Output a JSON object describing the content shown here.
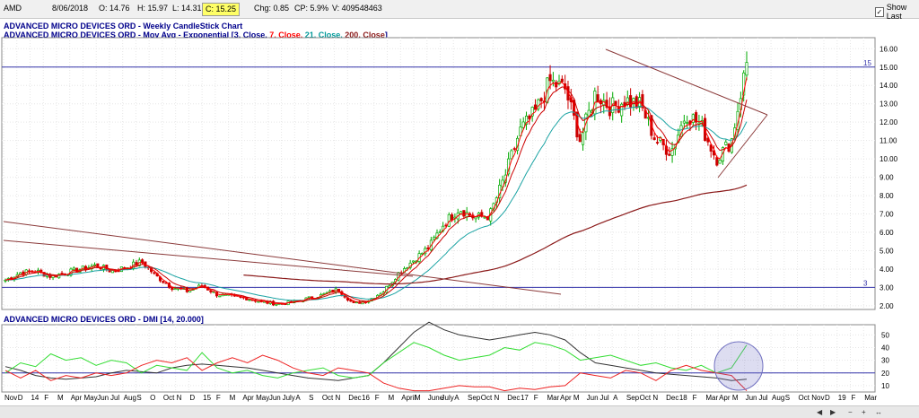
{
  "header": {
    "symbol": "AMD",
    "date": "8/06/2018",
    "open": "O: 14.76",
    "high": "H: 15.97",
    "low": "L: 14.31",
    "close": "C: 15.25",
    "change": "Chg: 0.85",
    "change_pct": "CP: 5.9%",
    "volume": "V: 409548463",
    "show_last_label": "Show Last"
  },
  "legend": {
    "title": "ADVANCED MICRO DEVICES ORD - Weekly CandleStick Chart",
    "ma_prefix": "ADVANCED MICRO DEVICES ORD - Mov Avg - Exponential [",
    "ma_p1": "3, Close,",
    "ma_p2": "7, Close,",
    "ma_p3": "21, Close,",
    "ma_p4": "200, Close",
    "ma_suffix": "]",
    "dmi": "ADVANCED MICRO DEVICES ORD - DMI [14, 20.000]"
  },
  "colors": {
    "up": "#00aa00",
    "down": "#cc0000",
    "ema3": "#ff0000",
    "ema7": "#cc0000",
    "ema21": "#1aa3a3",
    "ema200": "#8b1a1a",
    "trendline": "#8b3a3a",
    "hline": "#3333aa",
    "adx": "#333333",
    "plus_di": "#33dd33",
    "minus_di": "#ee2222"
  },
  "chart_data": [
    {
      "type": "candlestick",
      "title": "ADVANCED MICRO DEVICES ORD - Weekly CandleStick Chart",
      "ylim": [
        1.8,
        16.6
      ],
      "y_ticks": [
        "16.00",
        "15.00",
        "14.00",
        "13.00",
        "12.00",
        "11.00",
        "10.00",
        "9.00",
        "8.00",
        "7.00",
        "6.00",
        "5.00",
        "4.00",
        "3.00",
        "2.00"
      ],
      "horizontal_levels": [
        {
          "value": 15,
          "label": "15"
        },
        {
          "value": 3,
          "label": "3"
        }
      ],
      "close_path": [
        3.4,
        3.8,
        3.9,
        3.6,
        3.8,
        4.0,
        4.2,
        3.9,
        4.1,
        4.4,
        3.6,
        3.0,
        2.8,
        3.1,
        2.6,
        2.5,
        2.4,
        2.2,
        2.1,
        2.2,
        2.4,
        2.6,
        2.9,
        2.1,
        2.3,
        2.8,
        3.8,
        4.5,
        5.2,
        6.5,
        7.3,
        6.8,
        6.9,
        9.0,
        11.5,
        12.5,
        14.2,
        13.8,
        11.0,
        13.6,
        12.8,
        13.2,
        12.9,
        11.0,
        10.4,
        12.5,
        11.8,
        10.0,
        11.0,
        15.25
      ],
      "x_month_labels": [
        "Nov",
        "D",
        "14",
        "F",
        "M",
        "Apr",
        "May",
        "Jun",
        "Jul",
        "Aug",
        "S",
        "O",
        "Oct",
        "N",
        "D",
        "15",
        "F",
        "M",
        "Apr",
        "May",
        "Jun",
        "July",
        "A",
        "S",
        "Oct",
        "N",
        "Dec",
        "16",
        "F",
        "M",
        "April",
        "M",
        "June",
        "July",
        "A",
        "Sep",
        "Oct",
        "N",
        "Dec",
        "17",
        "F",
        "Mar",
        "Apr",
        "M",
        "Jun",
        "Jul",
        "A",
        "Sep",
        "Oct",
        "N",
        "Dec",
        "18",
        "F",
        "Mar",
        "Apr",
        "M",
        "Jun",
        "Jul",
        "Aug",
        "S",
        "Oct",
        "Nov",
        "D",
        "19",
        "F",
        "Mar"
      ]
    },
    {
      "type": "line",
      "title": "ADVANCED MICRO DEVICES ORD - DMI [14, 20.000]",
      "ylim": [
        5,
        58
      ],
      "y_ticks": [
        "50",
        "40",
        "30",
        "20",
        "10"
      ],
      "horizontal_levels": [
        {
          "value": 20,
          "label": ""
        }
      ],
      "series": [
        {
          "name": "ADX",
          "values": [
            25,
            22,
            18,
            16,
            15,
            16,
            17,
            20,
            22,
            21,
            20,
            24,
            26,
            27,
            26,
            25,
            24,
            22,
            20,
            18,
            16,
            15,
            14,
            16,
            18,
            28,
            40,
            52,
            60,
            54,
            50,
            48,
            46,
            48,
            50,
            52,
            50,
            46,
            36,
            28,
            26,
            24,
            22,
            20,
            19,
            18,
            17,
            16,
            14,
            15
          ]
        },
        {
          "name": "+DI",
          "values": [
            20,
            28,
            25,
            35,
            30,
            32,
            26,
            30,
            28,
            20,
            26,
            24,
            22,
            36,
            24,
            20,
            22,
            18,
            16,
            20,
            22,
            24,
            18,
            16,
            18,
            28,
            36,
            44,
            40,
            34,
            30,
            32,
            34,
            40,
            38,
            44,
            42,
            38,
            30,
            32,
            34,
            30,
            26,
            28,
            24,
            22,
            26,
            20,
            24,
            42
          ]
        },
        {
          "name": "-DI",
          "values": [
            22,
            16,
            22,
            14,
            18,
            16,
            20,
            18,
            20,
            26,
            30,
            28,
            32,
            22,
            28,
            32,
            28,
            34,
            30,
            24,
            20,
            18,
            24,
            22,
            20,
            12,
            8,
            6,
            6,
            8,
            10,
            9,
            9,
            6,
            8,
            7,
            9,
            10,
            20,
            18,
            16,
            22,
            20,
            14,
            22,
            26,
            22,
            20,
            18,
            6
          ]
        }
      ]
    }
  ]
}
